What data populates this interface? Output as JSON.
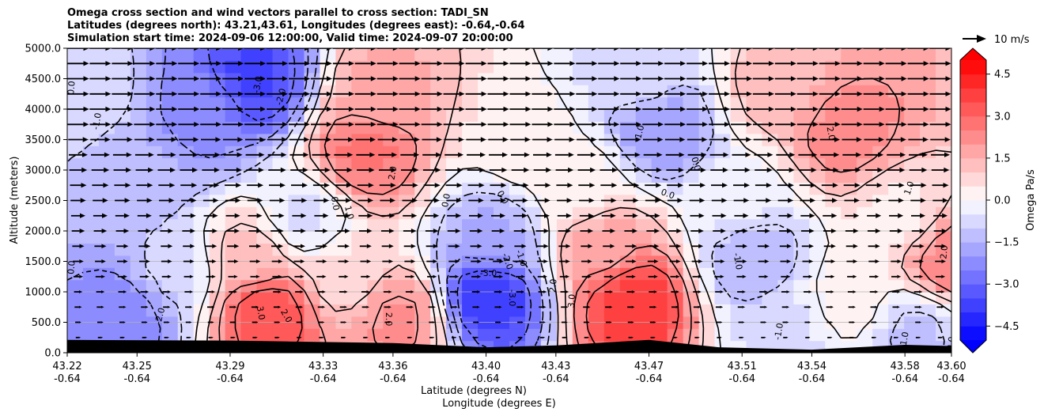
{
  "chart_data": {
    "type": "heatmap",
    "title_lines": [
      "Omega cross section and wind vectors parallel to cross section: TADI_SN",
      "Latitudes (degrees north): 43.21,43.61, Longitudes (degrees east): -0.64,-0.64",
      "Simulation start time: 2024-09-06 12:00:00, Valid time: 2024-09-07 20:00:00"
    ],
    "ylabel": "Altitude (meters)",
    "xlabel_lines": [
      "Latitude (degrees N)",
      "Longitude (degrees E)"
    ],
    "x_ticks": [
      {
        "lat": "43.22",
        "lon": "-0.64"
      },
      {
        "lat": "43.25",
        "lon": "-0.64"
      },
      {
        "lat": "43.29",
        "lon": "-0.64"
      },
      {
        "lat": "43.33",
        "lon": "-0.64"
      },
      {
        "lat": "43.36",
        "lon": "-0.64"
      },
      {
        "lat": "43.40",
        "lon": "-0.64"
      },
      {
        "lat": "43.43",
        "lon": "-0.64"
      },
      {
        "lat": "43.47",
        "lon": "-0.64"
      },
      {
        "lat": "43.51",
        "lon": "-0.64"
      },
      {
        "lat": "43.54",
        "lon": "-0.64"
      },
      {
        "lat": "43.58",
        "lon": "-0.64"
      },
      {
        "lat": "43.60",
        "lon": "-0.64"
      }
    ],
    "ylim": [
      0,
      5000
    ],
    "y_ticks": [
      "0.0",
      "500.0",
      "1000.0",
      "1500.0",
      "2000.0",
      "2500.0",
      "3000.0",
      "3500.0",
      "4000.0",
      "4500.0",
      "5000.0"
    ],
    "grid": "horizontal",
    "colorbar": {
      "label": "Omega Pa/s",
      "range": [
        -5,
        5
      ],
      "step": 0.5,
      "extend": "both",
      "ticks": [
        "4.5",
        "3.0",
        "1.5",
        "0.0",
        "−1.5",
        "−3.0",
        "−4.5"
      ],
      "colormap": "bwr",
      "low_color": "#0000ff",
      "mid_color": "#ffffff",
      "high_color": "#ff0000"
    },
    "quiver_key": {
      "label": "10 m/s",
      "speed": 10
    },
    "wind_direction": "parallel to section, pointing toward increasing latitude",
    "omega_features": [
      {
        "lat": 43.3,
        "alt": 4500,
        "omega": -3.6
      },
      {
        "lat": 43.278,
        "alt": 3900,
        "omega": -2.2
      },
      {
        "lat": 43.25,
        "alt": 3000,
        "omega": -1.4
      },
      {
        "lat": 43.225,
        "alt": 4300,
        "omega": -0.5
      },
      {
        "lat": 43.245,
        "alt": 650,
        "omega": -2.4
      },
      {
        "lat": 43.265,
        "alt": 1300,
        "omega": -0.9
      },
      {
        "lat": 43.322,
        "alt": 2200,
        "omega": -0.6
      },
      {
        "lat": 43.306,
        "alt": 700,
        "omega": 3.5
      },
      {
        "lat": 43.3,
        "alt": 1500,
        "omega": 1.4
      },
      {
        "lat": 43.348,
        "alt": 3300,
        "omega": 2.6
      },
      {
        "lat": 43.355,
        "alt": 4300,
        "omega": 1.6
      },
      {
        "lat": 43.362,
        "alt": 550,
        "omega": 2.1
      },
      {
        "lat": 43.34,
        "alt": 1300,
        "omega": 0.6
      },
      {
        "lat": 43.402,
        "alt": 900,
        "omega": -3.8
      },
      {
        "lat": 43.404,
        "alt": 1900,
        "omega": -1.6
      },
      {
        "lat": 43.416,
        "alt": 3400,
        "omega": 0.3
      },
      {
        "lat": 43.462,
        "alt": 850,
        "omega": 3.9
      },
      {
        "lat": 43.45,
        "alt": 1700,
        "omega": 1.8
      },
      {
        "lat": 43.44,
        "alt": 2700,
        "omega": 0.4
      },
      {
        "lat": 43.475,
        "alt": 3700,
        "omega": -1.9
      },
      {
        "lat": 43.468,
        "alt": 4500,
        "omega": -0.7
      },
      {
        "lat": 43.515,
        "alt": 1600,
        "omega": -1.5
      },
      {
        "lat": 43.508,
        "alt": 2500,
        "omega": -0.3
      },
      {
        "lat": 43.555,
        "alt": 3600,
        "omega": 2.3
      },
      {
        "lat": 43.525,
        "alt": 4400,
        "omega": 1.3
      },
      {
        "lat": 43.578,
        "alt": 2300,
        "omega": 0.4
      },
      {
        "lat": 43.6,
        "alt": 1500,
        "omega": 2.4
      },
      {
        "lat": 43.555,
        "alt": 900,
        "omega": 0.3
      },
      {
        "lat": 43.585,
        "alt": 350,
        "omega": -1.1
      },
      {
        "lat": 43.53,
        "alt": 450,
        "omega": -0.7
      }
    ],
    "contour_labels": [
      {
        "text": "-3.0",
        "lat": 43.302,
        "alt": 4400,
        "rot": -80
      },
      {
        "text": "-2.0",
        "lat": 43.312,
        "alt": 4200,
        "rot": -75
      },
      {
        "text": "-1.0",
        "lat": 43.233,
        "alt": 3800,
        "rot": -80
      },
      {
        "text": "0.0",
        "lat": 43.222,
        "alt": 4350,
        "rot": -85
      },
      {
        "text": "0.0",
        "lat": 43.222,
        "alt": 1400,
        "rot": -85
      },
      {
        "text": "-2.0",
        "lat": 43.26,
        "alt": 600,
        "rot": -75
      },
      {
        "text": "3.0",
        "lat": 43.303,
        "alt": 650,
        "rot": 80
      },
      {
        "text": "2.0",
        "lat": 43.314,
        "alt": 600,
        "rot": 60
      },
      {
        "text": "0.0",
        "lat": 43.335,
        "alt": 2450,
        "rot": 80
      },
      {
        "text": "1.0",
        "lat": 43.341,
        "alt": 2300,
        "rot": 75
      },
      {
        "text": "2.0",
        "lat": 43.36,
        "alt": 2950,
        "rot": -80
      },
      {
        "text": "2.0",
        "lat": 43.358,
        "alt": 550,
        "rot": 90
      },
      {
        "text": "0.0",
        "lat": 43.383,
        "alt": 2500,
        "rot": -80
      },
      {
        "text": "0.0",
        "lat": 43.407,
        "alt": 2550,
        "rot": 60
      },
      {
        "text": "-3.0",
        "lat": 43.401,
        "alt": 1300,
        "rot": 0
      },
      {
        "text": "-2.0",
        "lat": 43.409,
        "alt": 1500,
        "rot": 70
      },
      {
        "text": "-1.0",
        "lat": 43.415,
        "alt": 1550,
        "rot": 70
      },
      {
        "text": "-3.0",
        "lat": 43.411,
        "alt": 900,
        "rot": 90
      },
      {
        "text": "2.0",
        "lat": 43.429,
        "alt": 1100,
        "rot": -85
      },
      {
        "text": "3.0",
        "lat": 43.437,
        "alt": 850,
        "rot": -85
      },
      {
        "text": "-1.0",
        "lat": 43.466,
        "alt": 3600,
        "rot": -75
      },
      {
        "text": "0.0",
        "lat": 43.49,
        "alt": 3100,
        "rot": 75
      },
      {
        "text": "0.0",
        "lat": 43.478,
        "alt": 2600,
        "rot": 20
      },
      {
        "text": "-1.0",
        "lat": 43.508,
        "alt": 1500,
        "rot": 80
      },
      {
        "text": "2.0",
        "lat": 43.548,
        "alt": 3600,
        "rot": 80
      },
      {
        "text": "1.0",
        "lat": 43.582,
        "alt": 2700,
        "rot": -70
      },
      {
        "text": "2.0",
        "lat": 43.597,
        "alt": 1650,
        "rot": -85
      },
      {
        "text": "-1.0",
        "lat": 43.526,
        "alt": 350,
        "rot": -80
      },
      {
        "text": "1.0",
        "lat": 43.58,
        "alt": 230,
        "rot": -80
      },
      {
        "text": "0.0",
        "lat": 43.6,
        "alt": 150,
        "rot": -80
      }
    ],
    "terrain_altitude": [
      {
        "lat": 43.22,
        "alt": 210
      },
      {
        "lat": 43.29,
        "alt": 200
      },
      {
        "lat": 43.36,
        "alt": 160
      },
      {
        "lat": 43.4,
        "alt": 90
      },
      {
        "lat": 43.43,
        "alt": 120
      },
      {
        "lat": 43.47,
        "alt": 210
      },
      {
        "lat": 43.5,
        "alt": 90
      },
      {
        "lat": 43.54,
        "alt": 50
      },
      {
        "lat": 43.58,
        "alt": 130
      },
      {
        "lat": 43.6,
        "alt": 110
      }
    ]
  }
}
